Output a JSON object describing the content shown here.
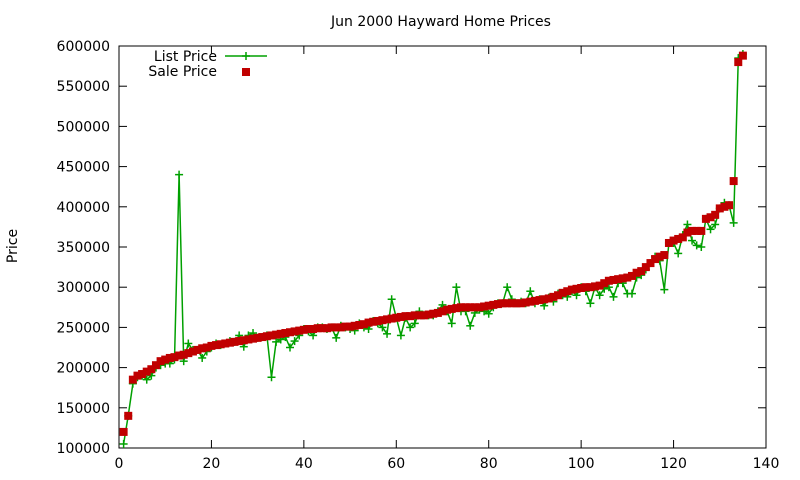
{
  "chart_data": {
    "type": "line",
    "title": "Jun 2000 Hayward Home Prices",
    "xlabel": "",
    "ylabel": "Price",
    "xlim": [
      0,
      140
    ],
    "ylim": [
      100000,
      600000
    ],
    "xticks": [
      0,
      20,
      40,
      60,
      80,
      100,
      120,
      140
    ],
    "yticks": [
      100000,
      150000,
      200000,
      250000,
      300000,
      350000,
      400000,
      450000,
      500000,
      550000,
      600000
    ],
    "grid": false,
    "legend_position": "top-left",
    "series": [
      {
        "name": "List Price",
        "style": "lines+points",
        "marker": "plus",
        "color": "#00a000",
        "points": [
          [
            1,
            105000
          ],
          [
            2,
            140000
          ],
          [
            3,
            180000
          ],
          [
            4,
            188000
          ],
          [
            5,
            190000
          ],
          [
            6,
            185000
          ],
          [
            7,
            190000
          ],
          [
            8,
            200000
          ],
          [
            9,
            203000
          ],
          [
            10,
            205000
          ],
          [
            11,
            205000
          ],
          [
            12,
            210000
          ],
          [
            13,
            440000
          ],
          [
            14,
            208000
          ],
          [
            15,
            230000
          ],
          [
            16,
            222000
          ],
          [
            17,
            222000
          ],
          [
            18,
            212000
          ],
          [
            19,
            220000
          ],
          [
            20,
            225000
          ],
          [
            21,
            230000
          ],
          [
            22,
            228000
          ],
          [
            23,
            230000
          ],
          [
            24,
            233000
          ],
          [
            25,
            232000
          ],
          [
            26,
            240000
          ],
          [
            27,
            226000
          ],
          [
            28,
            240000
          ],
          [
            29,
            243000
          ],
          [
            30,
            237000
          ],
          [
            31,
            238000
          ],
          [
            32,
            240000
          ],
          [
            33,
            188000
          ],
          [
            34,
            232000
          ],
          [
            35,
            235000
          ],
          [
            36,
            238000
          ],
          [
            37,
            225000
          ],
          [
            38,
            233000
          ],
          [
            39,
            240000
          ],
          [
            40,
            248000
          ],
          [
            41,
            245000
          ],
          [
            42,
            240000
          ],
          [
            43,
            250000
          ],
          [
            44,
            250000
          ],
          [
            45,
            248000
          ],
          [
            46,
            250000
          ],
          [
            47,
            237000
          ],
          [
            48,
            252000
          ],
          [
            49,
            250000
          ],
          [
            50,
            248000
          ],
          [
            51,
            246000
          ],
          [
            52,
            255000
          ],
          [
            53,
            250000
          ],
          [
            54,
            248000
          ],
          [
            55,
            258000
          ],
          [
            56,
            255000
          ],
          [
            57,
            250000
          ],
          [
            58,
            242000
          ],
          [
            59,
            285000
          ],
          [
            60,
            262000
          ],
          [
            61,
            240000
          ],
          [
            62,
            262000
          ],
          [
            63,
            250000
          ],
          [
            64,
            255000
          ],
          [
            65,
            270000
          ],
          [
            66,
            265000
          ],
          [
            67,
            265000
          ],
          [
            68,
            265000
          ],
          [
            69,
            270000
          ],
          [
            70,
            278000
          ],
          [
            71,
            270000
          ],
          [
            72,
            255000
          ],
          [
            73,
            300000
          ],
          [
            74,
            270000
          ],
          [
            75,
            270000
          ],
          [
            76,
            252000
          ],
          [
            77,
            268000
          ],
          [
            78,
            272000
          ],
          [
            79,
            270000
          ],
          [
            80,
            267000
          ],
          [
            81,
            275000
          ],
          [
            82,
            280000
          ],
          [
            83,
            280000
          ],
          [
            84,
            300000
          ],
          [
            85,
            285000
          ],
          [
            86,
            280000
          ],
          [
            87,
            282000
          ],
          [
            88,
            280000
          ],
          [
            89,
            295000
          ],
          [
            90,
            280000
          ],
          [
            91,
            285000
          ],
          [
            92,
            277000
          ],
          [
            93,
            287000
          ],
          [
            94,
            282000
          ],
          [
            95,
            292000
          ],
          [
            96,
            290000
          ],
          [
            97,
            288000
          ],
          [
            98,
            295000
          ],
          [
            99,
            290000
          ],
          [
            100,
            300000
          ],
          [
            101,
            295000
          ],
          [
            102,
            280000
          ],
          [
            103,
            300000
          ],
          [
            104,
            290000
          ],
          [
            105,
            298000
          ],
          [
            106,
            300000
          ],
          [
            107,
            288000
          ],
          [
            108,
            305000
          ],
          [
            109,
            305000
          ],
          [
            110,
            292000
          ],
          [
            111,
            292000
          ],
          [
            112,
            312000
          ],
          [
            113,
            315000
          ],
          [
            114,
            322000
          ],
          [
            115,
            330000
          ],
          [
            116,
            338000
          ],
          [
            117,
            333000
          ],
          [
            118,
            297000
          ],
          [
            119,
            355000
          ],
          [
            120,
            355000
          ],
          [
            121,
            342000
          ],
          [
            122,
            365000
          ],
          [
            123,
            378000
          ],
          [
            124,
            358000
          ],
          [
            125,
            352000
          ],
          [
            126,
            350000
          ],
          [
            127,
            385000
          ],
          [
            128,
            372000
          ],
          [
            129,
            378000
          ],
          [
            130,
            398000
          ],
          [
            131,
            405000
          ],
          [
            132,
            402000
          ],
          [
            133,
            380000
          ],
          [
            134,
            585000
          ],
          [
            135,
            590000
          ]
        ]
      },
      {
        "name": "Sale Price",
        "style": "points",
        "marker": "filled-square",
        "color": "#c00000",
        "points": [
          [
            1,
            120000
          ],
          [
            2,
            140000
          ],
          [
            3,
            185000
          ],
          [
            4,
            190000
          ],
          [
            5,
            192000
          ],
          [
            6,
            195000
          ],
          [
            7,
            198000
          ],
          [
            8,
            203000
          ],
          [
            9,
            208000
          ],
          [
            10,
            210000
          ],
          [
            11,
            212000
          ],
          [
            12,
            213000
          ],
          [
            13,
            215000
          ],
          [
            14,
            216000
          ],
          [
            15,
            218000
          ],
          [
            16,
            220000
          ],
          [
            17,
            222000
          ],
          [
            18,
            224000
          ],
          [
            19,
            225000
          ],
          [
            20,
            227000
          ],
          [
            21,
            228000
          ],
          [
            22,
            229000
          ],
          [
            23,
            230000
          ],
          [
            24,
            231000
          ],
          [
            25,
            232000
          ],
          [
            26,
            233000
          ],
          [
            27,
            234000
          ],
          [
            28,
            235000
          ],
          [
            29,
            236000
          ],
          [
            30,
            237000
          ],
          [
            31,
            238000
          ],
          [
            32,
            239000
          ],
          [
            33,
            240000
          ],
          [
            34,
            241000
          ],
          [
            35,
            242000
          ],
          [
            36,
            243000
          ],
          [
            37,
            244000
          ],
          [
            38,
            245000
          ],
          [
            39,
            246000
          ],
          [
            40,
            247000
          ],
          [
            41,
            248000
          ],
          [
            42,
            248000
          ],
          [
            43,
            249000
          ],
          [
            44,
            249000
          ],
          [
            45,
            249000
          ],
          [
            46,
            250000
          ],
          [
            47,
            250000
          ],
          [
            48,
            250000
          ],
          [
            49,
            251000
          ],
          [
            50,
            251000
          ],
          [
            51,
            252000
          ],
          [
            52,
            253000
          ],
          [
            53,
            254000
          ],
          [
            54,
            256000
          ],
          [
            55,
            257000
          ],
          [
            56,
            258000
          ],
          [
            57,
            259000
          ],
          [
            58,
            260000
          ],
          [
            59,
            261000
          ],
          [
            60,
            262000
          ],
          [
            61,
            263000
          ],
          [
            62,
            264000
          ],
          [
            63,
            264000
          ],
          [
            64,
            265000
          ],
          [
            65,
            265000
          ],
          [
            66,
            265000
          ],
          [
            67,
            266000
          ],
          [
            68,
            267000
          ],
          [
            69,
            268000
          ],
          [
            70,
            270000
          ],
          [
            71,
            272000
          ],
          [
            72,
            273000
          ],
          [
            73,
            274000
          ],
          [
            74,
            275000
          ],
          [
            75,
            275000
          ],
          [
            76,
            275000
          ],
          [
            77,
            275000
          ],
          [
            78,
            275000
          ],
          [
            79,
            276000
          ],
          [
            80,
            277000
          ],
          [
            81,
            278000
          ],
          [
            82,
            279000
          ],
          [
            83,
            280000
          ],
          [
            84,
            280000
          ],
          [
            85,
            280000
          ],
          [
            86,
            280000
          ],
          [
            87,
            280000
          ],
          [
            88,
            281000
          ],
          [
            89,
            282000
          ],
          [
            90,
            283000
          ],
          [
            91,
            284000
          ],
          [
            92,
            285000
          ],
          [
            93,
            286000
          ],
          [
            94,
            288000
          ],
          [
            95,
            290000
          ],
          [
            96,
            293000
          ],
          [
            97,
            295000
          ],
          [
            98,
            297000
          ],
          [
            99,
            298000
          ],
          [
            100,
            299000
          ],
          [
            101,
            300000
          ],
          [
            102,
            300000
          ],
          [
            103,
            301000
          ],
          [
            104,
            302000
          ],
          [
            105,
            305000
          ],
          [
            106,
            308000
          ],
          [
            107,
            309000
          ],
          [
            108,
            310000
          ],
          [
            109,
            311000
          ],
          [
            110,
            312000
          ],
          [
            111,
            314000
          ],
          [
            112,
            318000
          ],
          [
            113,
            320000
          ],
          [
            114,
            325000
          ],
          [
            115,
            330000
          ],
          [
            116,
            335000
          ],
          [
            117,
            338000
          ],
          [
            118,
            340000
          ],
          [
            119,
            355000
          ],
          [
            120,
            358000
          ],
          [
            121,
            360000
          ],
          [
            122,
            362000
          ],
          [
            123,
            368000
          ],
          [
            124,
            370000
          ],
          [
            125,
            370000
          ],
          [
            126,
            370000
          ],
          [
            127,
            385000
          ],
          [
            128,
            387000
          ],
          [
            129,
            390000
          ],
          [
            130,
            398000
          ],
          [
            131,
            400000
          ],
          [
            132,
            402000
          ],
          [
            133,
            432000
          ],
          [
            134,
            580000
          ],
          [
            135,
            588000
          ]
        ]
      }
    ]
  }
}
